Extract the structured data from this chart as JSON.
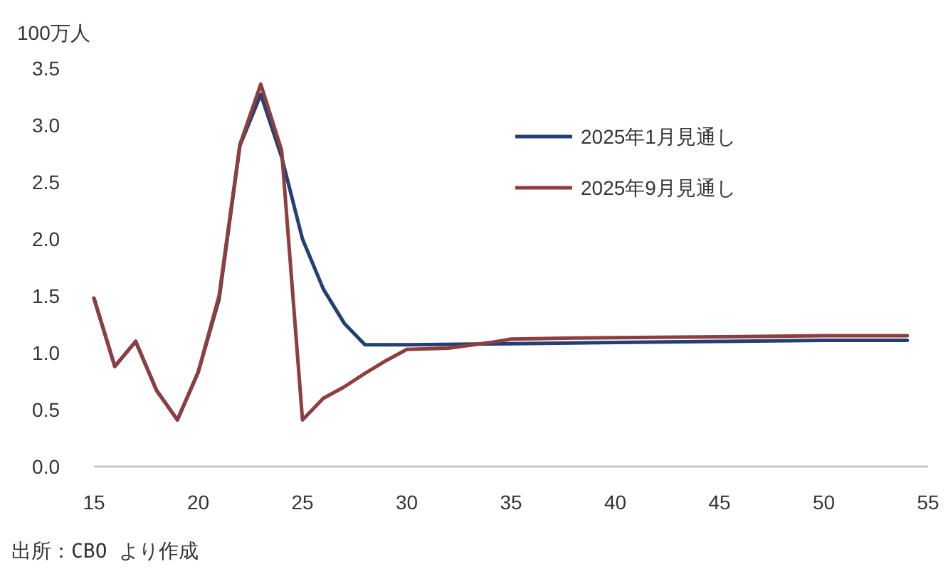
{
  "chart_data": {
    "type": "line",
    "ylabel": "100万人",
    "xlim": [
      15,
      55
    ],
    "xticks": [
      15,
      20,
      25,
      30,
      35,
      40,
      45,
      50,
      55
    ],
    "ylim": [
      0,
      3.5
    ],
    "yticks": [
      {
        "value": 0,
        "label": "0.0"
      },
      0.5,
      {
        "value": 1,
        "label": "1.0"
      },
      1.5,
      {
        "value": 2,
        "label": "2.0"
      },
      2.5,
      {
        "value": 3,
        "label": "3.0"
      },
      3.5
    ],
    "grid": false,
    "legend": "top right",
    "marker": "none",
    "line_style": "solid",
    "annotations": [
      "出所：CBO より作成"
    ],
    "series": [
      {
        "name": "2025年1月見通し",
        "color": "#243f73",
        "x": [
          15,
          16,
          17,
          18,
          19,
          20,
          21,
          22,
          23,
          24,
          25,
          26,
          27,
          28,
          30,
          35,
          40,
          45,
          50,
          54
        ],
        "values": [
          1.48,
          0.88,
          1.1,
          0.67,
          0.41,
          0.83,
          1.47,
          2.82,
          3.27,
          2.72,
          2.0,
          1.56,
          1.26,
          1.07,
          1.07,
          1.08,
          1.09,
          1.1,
          1.11,
          1.11
        ]
      },
      {
        "name": "2025年9月見通し",
        "color": "#8e3e3e",
        "x": [
          15,
          16,
          17,
          18,
          19,
          20,
          21,
          22,
          23,
          24,
          25,
          26,
          27,
          28,
          29,
          30,
          32,
          34,
          35,
          38,
          45,
          50,
          54
        ],
        "values": [
          1.48,
          0.88,
          1.1,
          0.67,
          0.41,
          0.83,
          1.5,
          2.83,
          3.36,
          2.78,
          0.41,
          0.6,
          0.7,
          0.82,
          0.93,
          1.03,
          1.04,
          1.09,
          1.12,
          1.13,
          1.14,
          1.15,
          1.15
        ]
      }
    ]
  }
}
